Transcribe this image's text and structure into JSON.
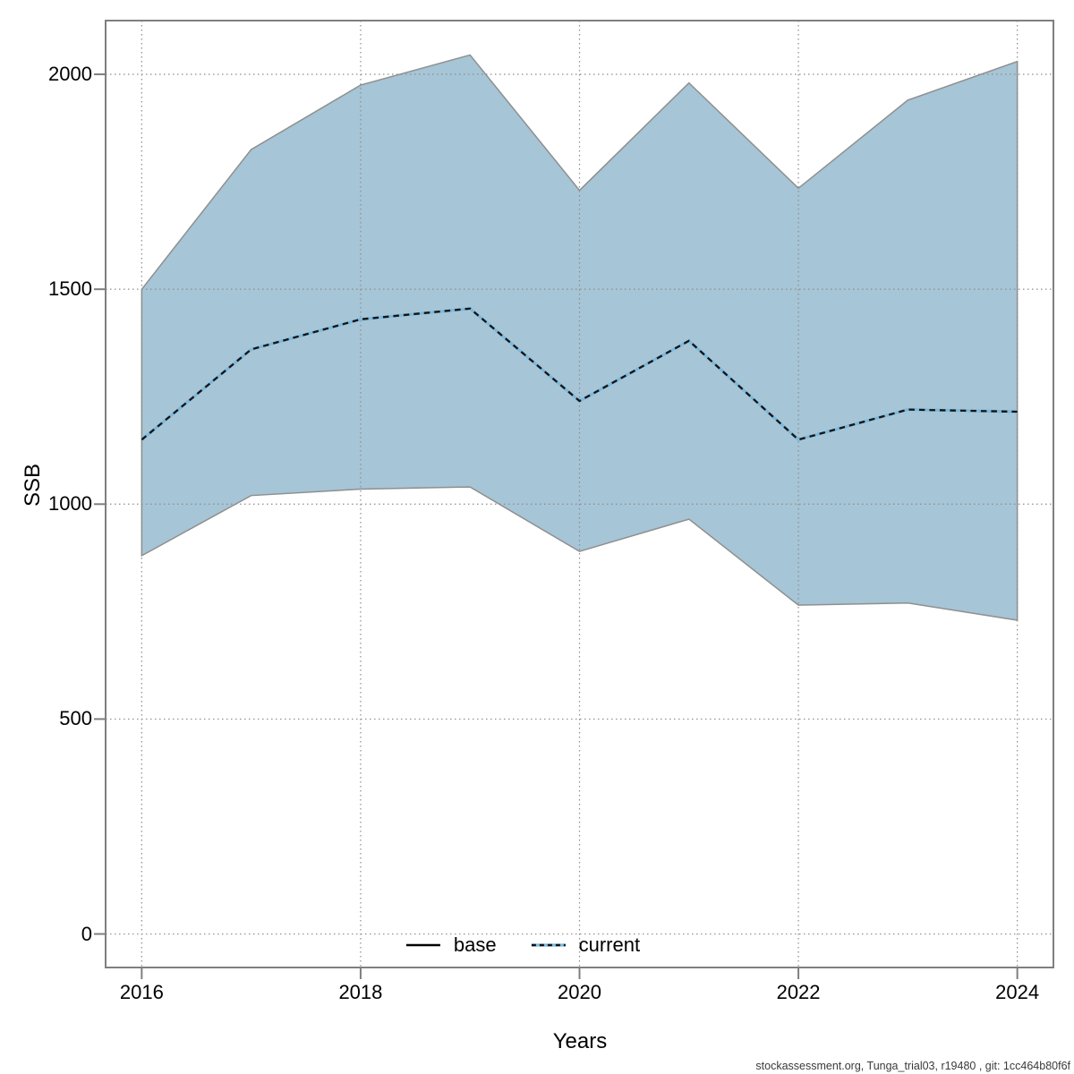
{
  "footer": {
    "text": "stockassessment.org, Tunga_trial03, r19480 , git: 1cc464b80f6f"
  },
  "chart_data": {
    "type": "area",
    "title": "",
    "xlabel": "Years",
    "ylabel": "SSB",
    "x": [
      2016,
      2017,
      2018,
      2019,
      2020,
      2021,
      2022,
      2023,
      2024
    ],
    "series": [
      {
        "name": "current",
        "style": "dashed-blue",
        "values": [
          1150,
          1360,
          1430,
          1455,
          1240,
          1380,
          1150,
          1220,
          1215
        ]
      },
      {
        "name": "confidence-upper",
        "style": "band-edge",
        "values": [
          1500,
          1825,
          1975,
          2045,
          1730,
          1980,
          1735,
          1940,
          2030
        ]
      },
      {
        "name": "confidence-lower",
        "style": "band-edge",
        "values": [
          880,
          1020,
          1035,
          1040,
          890,
          965,
          765,
          770,
          730
        ]
      }
    ],
    "legend": [
      {
        "label": "base",
        "style": "solid-black"
      },
      {
        "label": "current",
        "style": "dashed-blue"
      }
    ],
    "legend_position": "bottom-center-inside",
    "grid": "dotted",
    "x_ticks": [
      2016,
      2018,
      2020,
      2022,
      2024
    ],
    "y_ticks": [
      0,
      500,
      1000,
      1500,
      2000
    ],
    "xlim": [
      2015.67,
      2024.33
    ],
    "ylim": [
      -78,
      2125
    ],
    "colors": {
      "band_fill": "#a6c5d6",
      "band_edge": "#8f8f8f",
      "line_blue": "#7cb9dd",
      "line_dash": "#141414",
      "base_line": "#000000",
      "grid": "#8c8c8c",
      "box": "#7f7f7f",
      "tick": "#7f7f7f"
    }
  }
}
